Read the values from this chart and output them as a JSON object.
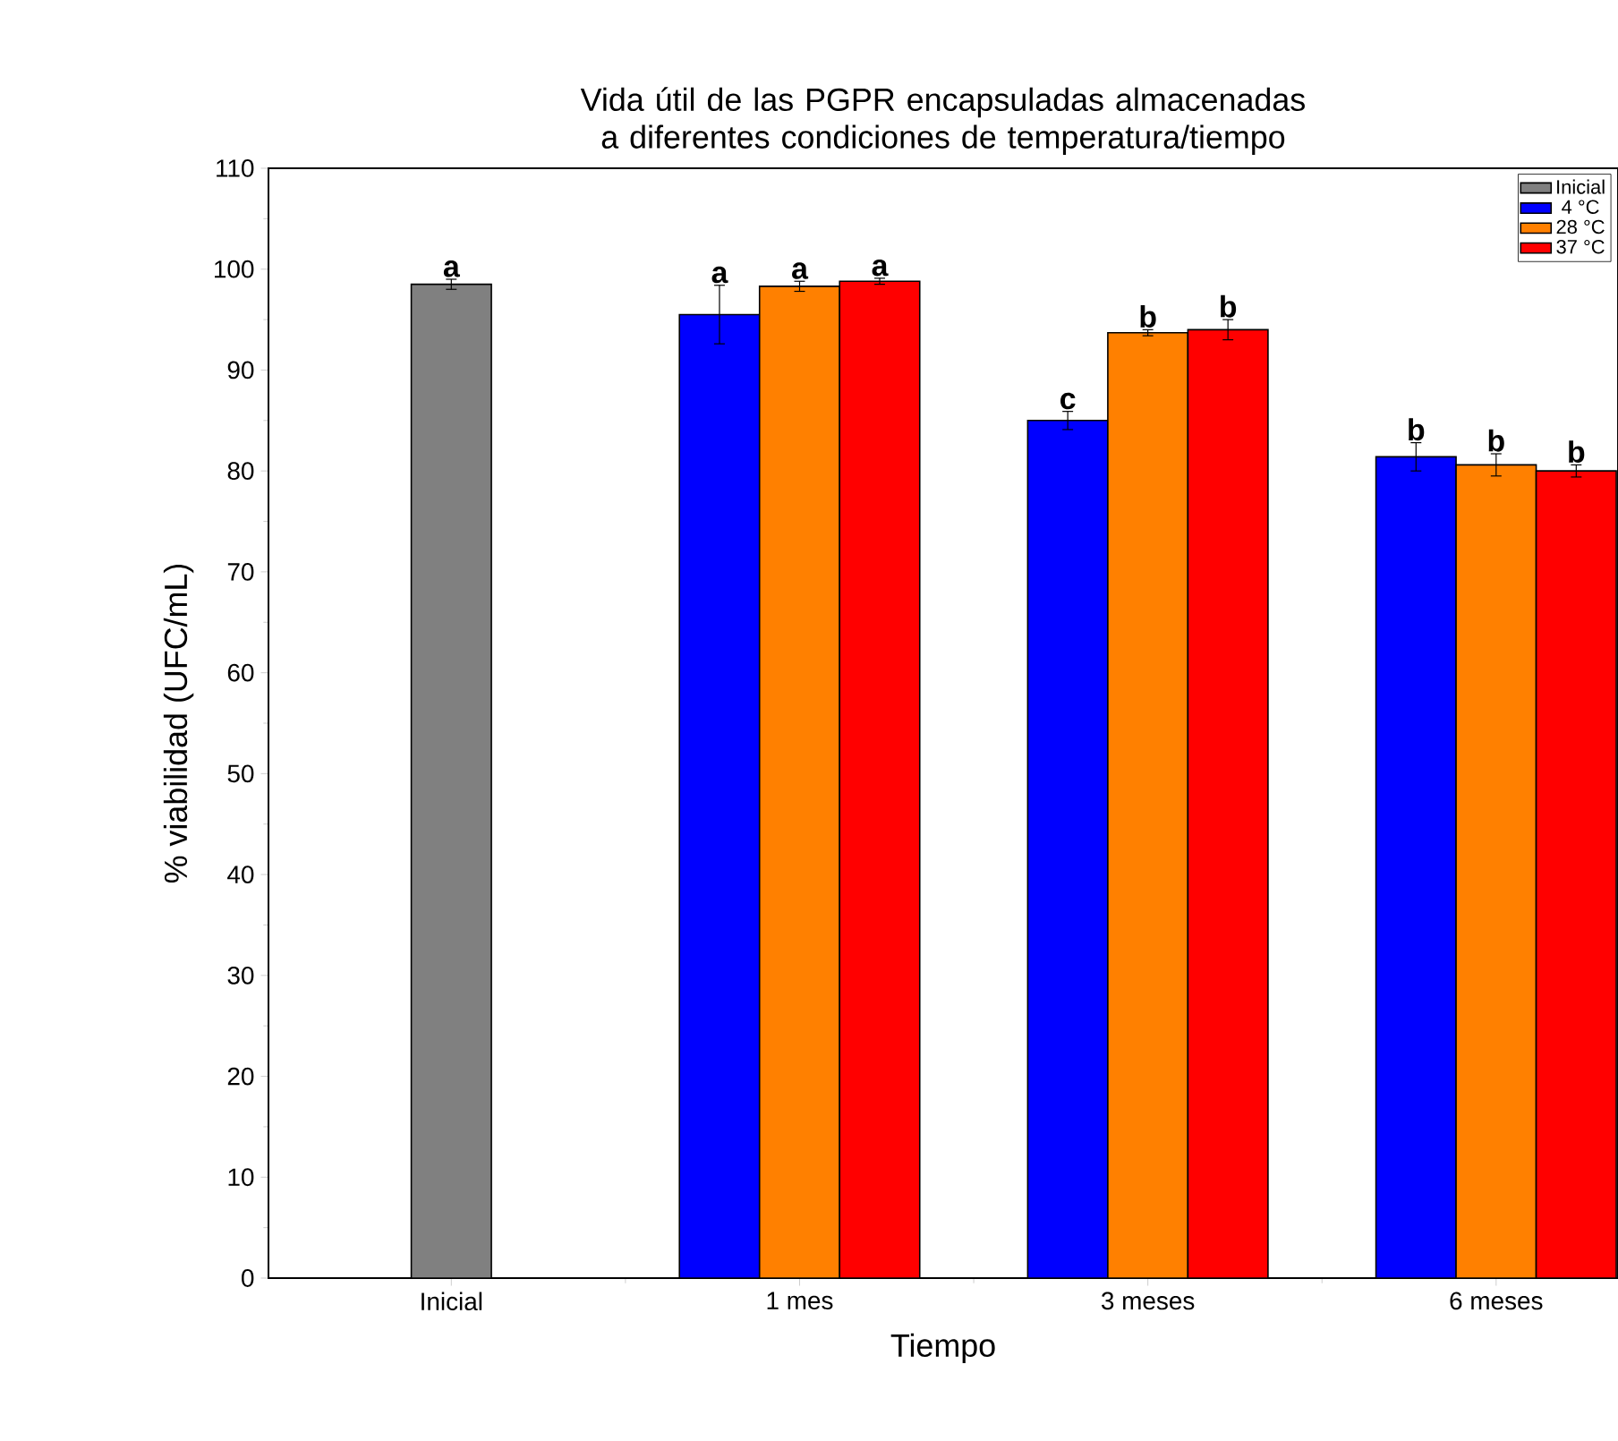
{
  "chart_data": {
    "type": "bar",
    "title": "Vida útil de las PGPR encapsuladas almacenadas a diferentes condiciones de temperatura/tiempo",
    "xlabel": "Tiempo",
    "ylabel": "% viabilidad (UFC/mL)",
    "categories": [
      "Inicial",
      "1 mes",
      "3 meses",
      "6 meses"
    ],
    "series": [
      {
        "name": "Inicial",
        "color": "#808080",
        "values": [
          98.5,
          null,
          null,
          null
        ],
        "errors": [
          0.5,
          null,
          null,
          null
        ],
        "value_labels": [
          "a",
          null,
          null,
          null
        ]
      },
      {
        "name": "4 °C",
        "color": "#0000ff",
        "values": [
          null,
          95.5,
          85.0,
          81.4
        ],
        "errors": [
          null,
          2.9,
          0.9,
          1.4
        ],
        "value_labels": [
          null,
          "a",
          "c",
          "b"
        ]
      },
      {
        "name": "28 °C",
        "color": "#ff8000",
        "values": [
          null,
          98.3,
          93.7,
          80.6
        ],
        "errors": [
          null,
          0.5,
          0.3,
          1.1
        ],
        "value_labels": [
          null,
          "a",
          "b",
          "b"
        ]
      },
      {
        "name": "37 °C",
        "color": "#ff0000",
        "values": [
          null,
          98.8,
          94.0,
          80.0
        ],
        "errors": [
          null,
          0.3,
          1.0,
          0.6
        ],
        "value_labels": [
          null,
          "a",
          "b",
          "b"
        ]
      }
    ],
    "ylim": [
      0,
      110
    ],
    "yticks": [
      0,
      10,
      20,
      30,
      40,
      50,
      60,
      70,
      80,
      90,
      100,
      110
    ],
    "legend": "top right",
    "grid": false
  }
}
